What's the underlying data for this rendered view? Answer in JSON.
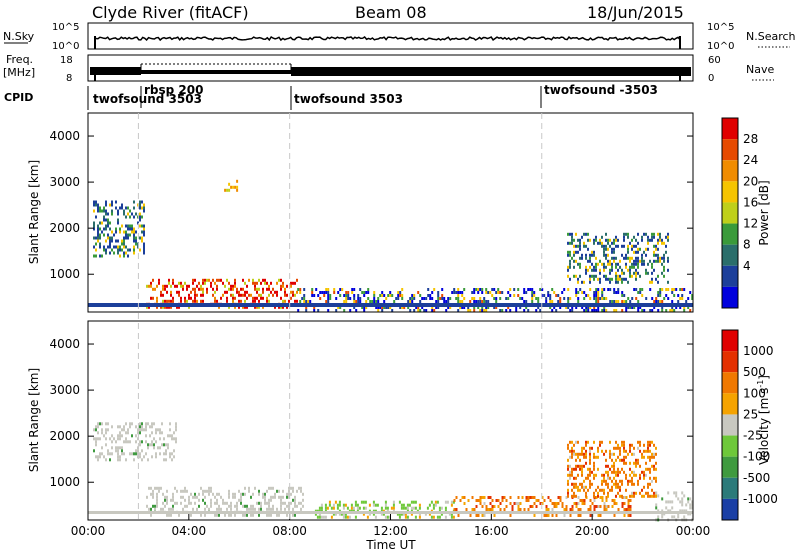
{
  "header": {
    "station": "Clyde River (fitACF)",
    "beam": "Beam 08",
    "date": "18/Jun/2015"
  },
  "panels": {
    "nsky": {
      "label": "N.Sky",
      "ticks_left": [
        "10^5",
        "10^0"
      ],
      "ticks_right": [
        "10^5",
        "10^0"
      ],
      "right_label": "N.Search"
    },
    "freq": {
      "label_line1": "Freq.",
      "label_line2": "[MHz]",
      "ticks_left": [
        "18",
        "8"
      ],
      "ticks_right": [
        "60",
        "0"
      ],
      "right_label": "Nave"
    },
    "cpid": {
      "label": "CPID"
    }
  },
  "colorbars": {
    "power": {
      "title": "Power [dB]",
      "labels": [
        "28",
        "24",
        "20",
        "16",
        "12",
        "8",
        "4"
      ]
    },
    "velocity": {
      "title": "Velocity [m s",
      "title_sup": "-1",
      "title_end": "]",
      "labels": [
        "1000",
        "500",
        "100",
        "25",
        "-25",
        "-100",
        "-500",
        "-1000"
      ]
    }
  },
  "colors": {
    "power_scale": [
      "#0000dd",
      "#1c3f9a",
      "#2a6e6b",
      "#3a9a3a",
      "#bfcf1a",
      "#f5c400",
      "#f08c00",
      "#e64a00",
      "#e00000"
    ],
    "velocity_scale": [
      "#1a3fa5",
      "#2b7a7a",
      "#3f9a3f",
      "#6ec83a",
      "#c8c8c0",
      "#f5a300",
      "#f07800",
      "#e43000",
      "#e00000"
    ],
    "dashed_lines": "#c8c8c8"
  },
  "chart_data": [
    {
      "type": "line",
      "name": "nsky-nsearch",
      "x": [
        "00:00",
        "04:00",
        "08:00",
        "12:00",
        "16:00",
        "20:00",
        "00:00"
      ],
      "values_approx_log10": [
        1.2,
        1.4,
        1.3,
        1.3,
        1.3,
        1.3,
        1.2
      ],
      "ylim_log": [
        0,
        5
      ]
    },
    {
      "type": "line",
      "name": "frequency-nave",
      "freq_mhz_approx": 10.5,
      "nave_dotted_approx": 45,
      "ylim": [
        8,
        18
      ],
      "y2lim": [
        0,
        60
      ]
    },
    {
      "type": "table",
      "name": "cpid",
      "segments": [
        {
          "start": "00:00",
          "label": "twofsound 3503"
        },
        {
          "start": "02:00",
          "label": "rbsp 200"
        },
        {
          "start": "08:00",
          "label": "twofsound 3503"
        },
        {
          "start": "18:00",
          "label": "twofsound -3503"
        }
      ]
    },
    {
      "type": "heatmap",
      "name": "power",
      "xlabel": "",
      "ylabel": "Slant Range [km]",
      "xlim_hours": [
        0,
        24
      ],
      "ylim_km": [
        180,
        4500
      ],
      "yticks": [
        "1000",
        "2000",
        "3000",
        "4000"
      ],
      "colorbar": "Power [dB]",
      "regions": [
        {
          "t0": 0.2,
          "t1": 2.2,
          "r0": 1400,
          "r1": 2600,
          "val": "low"
        },
        {
          "t0": 2.3,
          "t1": 8.3,
          "r0": 300,
          "r1": 900,
          "val": "high"
        },
        {
          "t0": 5.4,
          "t1": 5.9,
          "r0": 2850,
          "r1": 3050,
          "val": "mid"
        },
        {
          "t0": 8.3,
          "t1": 24,
          "r0": 200,
          "r1": 700,
          "val": "low-mid"
        },
        {
          "t0": 19.0,
          "t1": 23.0,
          "r0": 800,
          "r1": 1900,
          "val": "low"
        }
      ]
    },
    {
      "type": "heatmap",
      "name": "velocity",
      "xlabel": "Time UT",
      "ylabel": "Slant Range [km]",
      "xticks": [
        "00:00",
        "04:00",
        "08:00",
        "12:00",
        "16:00",
        "20:00",
        "00:00"
      ],
      "xlim_hours": [
        0,
        24
      ],
      "ylim_km": [
        180,
        4500
      ],
      "yticks": [
        "1000",
        "2000",
        "3000",
        "4000"
      ],
      "colorbar": "Velocity [m s^-1]",
      "regions": [
        {
          "t0": 0.2,
          "t1": 3.5,
          "r0": 1500,
          "r1": 2300,
          "val": "gray"
        },
        {
          "t0": 2.3,
          "t1": 8.5,
          "r0": 300,
          "r1": 900,
          "val": "gray"
        },
        {
          "t0": 9.0,
          "t1": 14.5,
          "r0": 250,
          "r1": 600,
          "val": "green"
        },
        {
          "t0": 14.5,
          "t1": 21.5,
          "r0": 300,
          "r1": 700,
          "val": "orange"
        },
        {
          "t0": 19.0,
          "t1": 22.5,
          "r0": 700,
          "r1": 1900,
          "val": "orange"
        },
        {
          "t0": 22.5,
          "t1": 24.0,
          "r0": 200,
          "r1": 800,
          "val": "gray"
        }
      ]
    }
  ],
  "time_labels": [
    "00:00",
    "04:00",
    "08:00",
    "12:00",
    "16:00",
    "20:00",
    "00:00"
  ],
  "x_axis_title": "Time UT"
}
